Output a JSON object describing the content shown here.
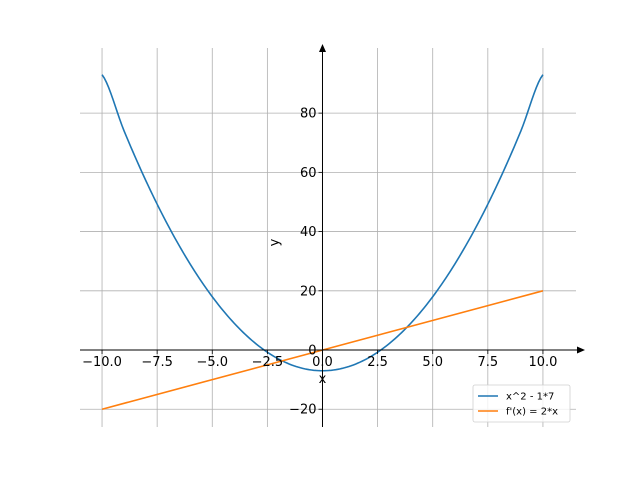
{
  "chart_data": {
    "type": "line",
    "title": "",
    "xlabel": "x",
    "ylabel": "y",
    "xlim": [
      -11.0,
      11.5
    ],
    "ylim": [
      -26,
      102
    ],
    "x_ticks": [
      -10.0,
      -7.5,
      -5.0,
      -2.5,
      0.0,
      2.5,
      5.0,
      7.5,
      10.0
    ],
    "x_tick_labels": [
      "−10.0",
      "−7.5",
      "−5.0",
      "−2.5",
      "0.0",
      "2.5",
      "5.0",
      "7.5",
      "10.0"
    ],
    "y_ticks": [
      -20,
      0,
      20,
      40,
      60,
      80
    ],
    "y_tick_labels": [
      "−20",
      "0",
      "20",
      "40",
      "60",
      "80"
    ],
    "grid": true,
    "legend_position": "lower-right",
    "series": [
      {
        "name": "x^2 - 1*7",
        "color": "#1f77b4",
        "x": [
          -10,
          -9,
          -8,
          -7,
          -6,
          -5,
          -4,
          -3,
          -2,
          -1,
          0,
          1,
          2,
          3,
          4,
          5,
          6,
          7,
          8,
          9,
          10
        ],
        "y": [
          93,
          74,
          57,
          42,
          29,
          18,
          9,
          2,
          -3,
          -6,
          -7,
          -6,
          -3,
          2,
          9,
          18,
          29,
          42,
          57,
          74,
          93
        ]
      },
      {
        "name": "f'(x) = 2*x",
        "color": "#ff7f0e",
        "x": [
          -10,
          10
        ],
        "y": [
          -20,
          20
        ]
      }
    ]
  }
}
